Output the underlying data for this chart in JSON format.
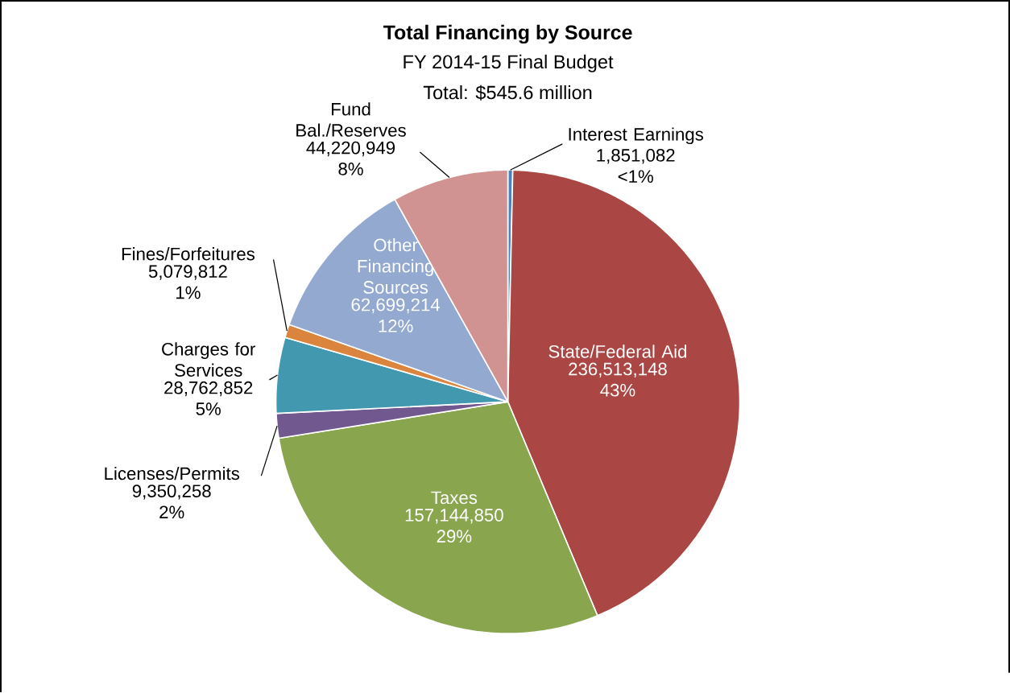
{
  "chart_data": {
    "type": "pie",
    "title": "Total Financing by Source",
    "subtitle": "FY 2014-15 Final Budget",
    "annotations": [
      "Total: $545.6 million"
    ],
    "categories": [
      "Interest Earnings",
      "State/Federal Aid",
      "Taxes",
      "Licenses/Permits",
      "Charges for Services",
      "Fines/Forfeitures",
      "Other Financing Sources",
      "Fund Bal./Reserves"
    ],
    "values": [
      1851082,
      236513148,
      157144850,
      9350258,
      28762852,
      5079812,
      62699214,
      44220949
    ],
    "colors": [
      "#4f81bd",
      "#aa4644",
      "#89a54e",
      "#71588f",
      "#4198af",
      "#db843d",
      "#93a9cf",
      "#d19392"
    ],
    "value_labels": [
      "1,851,082 <1%",
      "236,513,148 43%",
      "157,144,850 29%",
      "9,350,258 2%",
      "28,762,852 5%",
      "5,079,812 1%",
      "62,699,214 12%",
      "44,220,949 8%"
    ]
  }
}
